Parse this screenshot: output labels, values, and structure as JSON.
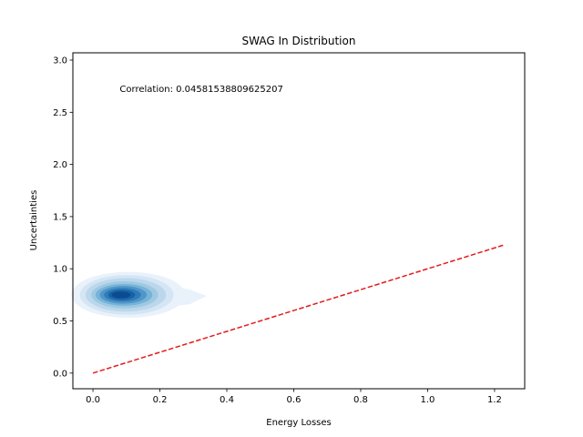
{
  "chart_data": {
    "type": "kde_density",
    "title": "SWAG In Distribution",
    "xlabel": "Energy Losses",
    "ylabel": "Uncertainties",
    "xlim": [
      -0.06,
      1.29
    ],
    "ylim": [
      -0.15,
      3.07
    ],
    "xticks": [
      0.0,
      0.2,
      0.4,
      0.6,
      0.8,
      1.0,
      1.2
    ],
    "xtick_labels": [
      "0.0",
      "0.2",
      "0.4",
      "0.6",
      "0.8",
      "1.0",
      "1.2"
    ],
    "yticks": [
      0.0,
      0.5,
      1.0,
      1.5,
      2.0,
      2.5,
      3.0
    ],
    "ytick_labels": [
      "0.0",
      "0.5",
      "1.0",
      "1.5",
      "2.0",
      "2.5",
      "3.0"
    ],
    "grid": false,
    "annotation": {
      "text": "Correlation: 0.04581538809625207",
      "x": 0.08,
      "y": 2.73
    },
    "density": {
      "center": [
        0.08,
        0.75
      ],
      "levels": [
        {
          "rx": 0.17,
          "ry": 0.22,
          "color": "#e9f2fa"
        },
        {
          "rx": 0.14,
          "ry": 0.19,
          "color": "#d4e5f4"
        },
        {
          "rx": 0.12,
          "ry": 0.16,
          "color": "#bcd7ec"
        },
        {
          "rx": 0.1,
          "ry": 0.13,
          "color": "#9ecae1"
        },
        {
          "rx": 0.085,
          "ry": 0.105,
          "color": "#77b3d8"
        },
        {
          "rx": 0.07,
          "ry": 0.085,
          "color": "#5196c8"
        },
        {
          "rx": 0.055,
          "ry": 0.065,
          "color": "#2f7bb8"
        },
        {
          "rx": 0.04,
          "ry": 0.048,
          "color": "#1662a7"
        },
        {
          "rx": 0.028,
          "ry": 0.032,
          "color": "#0b4c8e"
        }
      ],
      "tail": {
        "x_end": 0.34,
        "y": 0.74,
        "color": "#e9f2fa"
      }
    },
    "reference_line": {
      "x": [
        0.0,
        1.23
      ],
      "y": [
        0.0,
        1.23
      ],
      "color": "#e41a1c",
      "style": "dashed"
    }
  }
}
